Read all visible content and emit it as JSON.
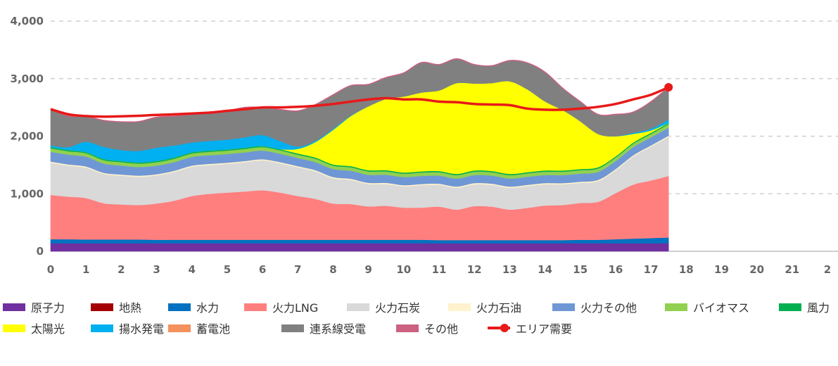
{
  "chart_data": {
    "type": "area",
    "stacked": true,
    "xlim": [
      0,
      22
    ],
    "ylim": [
      0,
      4000
    ],
    "x_ticks": [
      "0",
      "1",
      "2",
      "3",
      "4",
      "5",
      "6",
      "7",
      "8",
      "9",
      "10",
      "11",
      "12",
      "13",
      "14",
      "15",
      "16",
      "17",
      "18",
      "19",
      "20",
      "21",
      "2"
    ],
    "y_ticks": [
      "0",
      "1,000",
      "2,000",
      "3,000",
      "4,000"
    ],
    "grid": "horizontal dashed",
    "legend_position": "bottom",
    "x": [
      0,
      0.5,
      1,
      1.5,
      2,
      2.5,
      3,
      3.5,
      4,
      4.5,
      5,
      5.5,
      6,
      6.5,
      7,
      7.5,
      8,
      8.5,
      9,
      9.5,
      10,
      10.5,
      11,
      11.5,
      12,
      12.5,
      13,
      13.5,
      14,
      14.5,
      15,
      15.5,
      16,
      16.5,
      17,
      17.5
    ],
    "series": [
      {
        "name": "原子力",
        "color": "#7030a0",
        "values": [
          140,
          140,
          140,
          140,
          140,
          140,
          140,
          140,
          140,
          140,
          140,
          140,
          140,
          140,
          140,
          140,
          140,
          140,
          140,
          140,
          140,
          140,
          140,
          140,
          140,
          140,
          140,
          140,
          140,
          140,
          140,
          140,
          140,
          140,
          140,
          140
        ]
      },
      {
        "name": "地熱",
        "color": "#a50000",
        "values": [
          0,
          0,
          0,
          0,
          0,
          0,
          0,
          0,
          0,
          0,
          0,
          0,
          0,
          0,
          0,
          0,
          0,
          0,
          0,
          0,
          0,
          0,
          0,
          0,
          0,
          0,
          0,
          0,
          0,
          0,
          0,
          0,
          0,
          0,
          0,
          0
        ]
      },
      {
        "name": "水力",
        "color": "#0070c0",
        "values": [
          70,
          70,
          65,
          65,
          65,
          65,
          60,
          60,
          60,
          60,
          60,
          60,
          60,
          60,
          60,
          60,
          60,
          60,
          60,
          60,
          60,
          60,
          55,
          55,
          55,
          55,
          55,
          55,
          55,
          55,
          60,
          60,
          70,
          80,
          90,
          100
        ]
      },
      {
        "name": "火力LNG",
        "color": "#ff7f7f",
        "values": [
          770,
          740,
          720,
          630,
          610,
          600,
          630,
          680,
          760,
          800,
          820,
          840,
          860,
          820,
          760,
          710,
          630,
          620,
          580,
          590,
          560,
          560,
          580,
          530,
          590,
          580,
          530,
          560,
          600,
          610,
          640,
          660,
          800,
          940,
          1000,
          1070
        ]
      },
      {
        "name": "火力石炭",
        "color": "#d9d9d9",
        "values": [
          560,
          540,
          530,
          510,
          500,
          490,
          490,
          500,
          510,
          500,
          500,
          510,
          520,
          510,
          500,
          480,
          440,
          420,
          390,
          380,
          370,
          390,
          380,
          380,
          380,
          380,
          380,
          380,
          370,
          360,
          350,
          360,
          400,
          490,
          590,
          680
        ]
      },
      {
        "name": "火力石油",
        "color": "#fff2cc",
        "values": [
          20,
          20,
          20,
          20,
          20,
          20,
          20,
          20,
          20,
          20,
          20,
          20,
          20,
          20,
          20,
          20,
          20,
          20,
          20,
          20,
          20,
          20,
          20,
          20,
          20,
          20,
          20,
          20,
          20,
          20,
          20,
          20,
          20,
          20,
          20,
          20
        ]
      },
      {
        "name": "火力その他",
        "color": "#6f97d6",
        "values": [
          170,
          170,
          170,
          160,
          155,
          150,
          150,
          150,
          150,
          150,
          150,
          150,
          150,
          145,
          140,
          140,
          140,
          140,
          140,
          140,
          140,
          140,
          140,
          140,
          140,
          140,
          140,
          140,
          140,
          140,
          140,
          140,
          140,
          140,
          140,
          140
        ]
      },
      {
        "name": "バイオマス",
        "color": "#92d050",
        "values": [
          60,
          60,
          60,
          60,
          60,
          60,
          60,
          60,
          60,
          60,
          60,
          60,
          60,
          60,
          60,
          60,
          60,
          60,
          60,
          60,
          60,
          60,
          60,
          60,
          60,
          60,
          60,
          60,
          60,
          60,
          60,
          60,
          60,
          60,
          60,
          60
        ]
      },
      {
        "name": "風力",
        "color": "#00b050",
        "values": [
          20,
          20,
          20,
          20,
          20,
          20,
          20,
          20,
          20,
          20,
          20,
          20,
          20,
          20,
          20,
          20,
          20,
          20,
          20,
          20,
          20,
          20,
          20,
          20,
          20,
          20,
          20,
          20,
          20,
          20,
          20,
          20,
          20,
          20,
          20,
          20
        ]
      },
      {
        "name": "太陽光",
        "color": "#ffff00",
        "values": [
          0,
          0,
          0,
          0,
          0,
          0,
          0,
          0,
          0,
          0,
          0,
          0,
          0,
          0,
          80,
          270,
          600,
          870,
          1110,
          1240,
          1320,
          1370,
          1400,
          1580,
          1510,
          1530,
          1610,
          1440,
          1200,
          1050,
          830,
          580,
          350,
          150,
          40,
          0
        ]
      },
      {
        "name": "揚水発電",
        "color": "#00b0f0",
        "values": [
          30,
          50,
          180,
          210,
          190,
          200,
          230,
          210,
          170,
          170,
          170,
          180,
          190,
          140,
          40,
          20,
          20,
          10,
          0,
          0,
          0,
          0,
          0,
          0,
          0,
          0,
          0,
          0,
          0,
          0,
          0,
          0,
          0,
          20,
          30,
          60
        ]
      },
      {
        "name": "蓄電池",
        "color": "#f4915c",
        "values": [
          0,
          0,
          0,
          0,
          0,
          0,
          0,
          0,
          0,
          0,
          0,
          0,
          0,
          0,
          0,
          0,
          0,
          0,
          0,
          0,
          0,
          0,
          0,
          0,
          0,
          0,
          0,
          0,
          0,
          0,
          0,
          0,
          0,
          0,
          0,
          0
        ]
      },
      {
        "name": "連系線受電",
        "color": "#808080",
        "values": [
          630,
          540,
          440,
          460,
          490,
          510,
          530,
          510,
          490,
          500,
          500,
          520,
          480,
          550,
          620,
          630,
          590,
          520,
          380,
          370,
          410,
          520,
          450,
          420,
          330,
          300,
          360,
          460,
          510,
          380,
          340,
          340,
          380,
          360,
          470,
          560
        ]
      },
      {
        "name": "その他",
        "color": "#cc6180",
        "values": [
          0,
          0,
          0,
          0,
          0,
          0,
          0,
          0,
          0,
          0,
          0,
          0,
          0,
          0,
          0,
          0,
          0,
          0,
          0,
          0,
          0,
          0,
          0,
          0,
          0,
          0,
          0,
          0,
          0,
          0,
          0,
          0,
          0,
          0,
          0,
          0
        ]
      }
    ],
    "demand": {
      "name": "エリア需要",
      "color": "#e81919",
      "values": [
        2470,
        2380,
        2350,
        2340,
        2345,
        2355,
        2370,
        2380,
        2395,
        2410,
        2440,
        2470,
        2500,
        2500,
        2510,
        2530,
        2560,
        2600,
        2640,
        2660,
        2640,
        2640,
        2600,
        2590,
        2560,
        2550,
        2540,
        2480,
        2460,
        2460,
        2480,
        2510,
        2560,
        2640,
        2720,
        2850
      ]
    }
  }
}
